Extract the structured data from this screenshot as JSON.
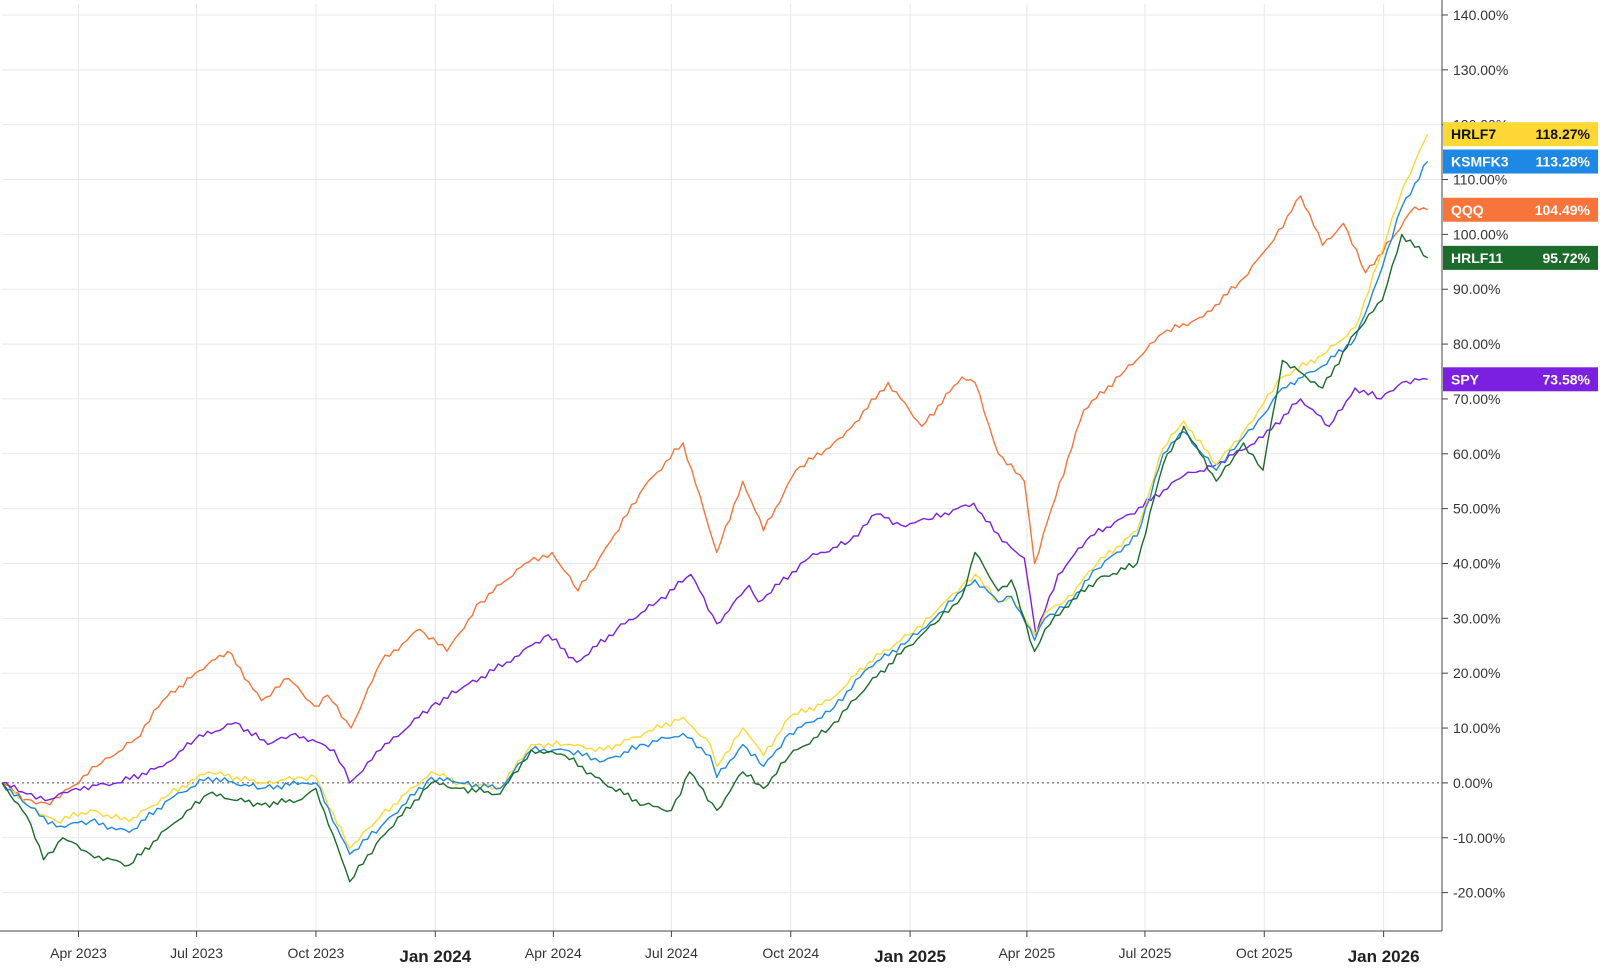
{
  "chart_data": {
    "type": "line",
    "title": "",
    "xlabel": "",
    "ylabel": "",
    "x_ticks": [
      {
        "label": "Apr 2023",
        "date": "2023-04-01",
        "major": false
      },
      {
        "label": "Jul 2023",
        "date": "2023-07-01",
        "major": false
      },
      {
        "label": "Oct 2023",
        "date": "2023-10-01",
        "major": false
      },
      {
        "label": "Jan 2024",
        "date": "2024-01-01",
        "major": true
      },
      {
        "label": "Apr 2024",
        "date": "2024-04-01",
        "major": false
      },
      {
        "label": "Jul 2024",
        "date": "2024-07-01",
        "major": false
      },
      {
        "label": "Oct 2024",
        "date": "2024-10-01",
        "major": false
      },
      {
        "label": "Jan 2025",
        "date": "2025-01-01",
        "major": true
      },
      {
        "label": "Apr 2025",
        "date": "2025-04-01",
        "major": false
      },
      {
        "label": "Jul 2025",
        "date": "2025-07-01",
        "major": false
      },
      {
        "label": "Oct 2025",
        "date": "2025-10-01",
        "major": false
      },
      {
        "label": "Jan 2026",
        "date": "2026-01-01",
        "major": true
      }
    ],
    "y_ticks": [
      -20,
      -10,
      0,
      10,
      20,
      30,
      40,
      50,
      60,
      70,
      80,
      90,
      100,
      110,
      120,
      130,
      140
    ],
    "y_tick_labels": [
      "-20.00%",
      "-10.00%",
      "0.00%",
      "10.00%",
      "20.00%",
      "30.00%",
      "40.00%",
      "50.00%",
      "60.00%",
      "70.00%",
      "80.00%",
      "90.00%",
      "100.00%",
      "110.00%",
      "120.00%",
      "130.00%",
      "140.00%"
    ],
    "xlim": [
      "2023-02-01",
      "2026-02-15"
    ],
    "ylim": [
      -27,
      142
    ],
    "grid": true,
    "zero_line": "dotted",
    "series": [
      {
        "name": "QQQ",
        "color": "#f7743b",
        "last_label": "104.49%",
        "last_value": 104.49,
        "points": [
          [
            "2023-02-01",
            0
          ],
          [
            "2023-02-20",
            -3
          ],
          [
            "2023-03-10",
            -4
          ],
          [
            "2023-03-25",
            -1
          ],
          [
            "2023-04-15",
            3
          ],
          [
            "2023-05-15",
            8
          ],
          [
            "2023-06-05",
            15
          ],
          [
            "2023-06-30",
            20
          ],
          [
            "2023-07-25",
            24
          ],
          [
            "2023-08-20",
            15
          ],
          [
            "2023-09-10",
            19
          ],
          [
            "2023-09-30",
            14
          ],
          [
            "2023-10-10",
            16
          ],
          [
            "2023-10-28",
            10
          ],
          [
            "2023-11-20",
            22
          ],
          [
            "2023-12-20",
            28
          ],
          [
            "2024-01-10",
            24
          ],
          [
            "2024-02-05",
            33
          ],
          [
            "2024-03-10",
            40
          ],
          [
            "2024-03-31",
            42
          ],
          [
            "2024-04-20",
            35
          ],
          [
            "2024-05-15",
            44
          ],
          [
            "2024-06-10",
            54
          ],
          [
            "2024-07-10",
            62
          ],
          [
            "2024-08-05",
            42
          ],
          [
            "2024-08-25",
            55
          ],
          [
            "2024-09-10",
            46
          ],
          [
            "2024-10-05",
            57
          ],
          [
            "2024-11-10",
            63
          ],
          [
            "2024-12-15",
            73
          ],
          [
            "2025-01-10",
            65
          ],
          [
            "2025-02-10",
            74
          ],
          [
            "2025-02-20",
            73
          ],
          [
            "2025-03-10",
            60
          ],
          [
            "2025-03-30",
            55
          ],
          [
            "2025-04-07",
            40
          ],
          [
            "2025-04-20",
            50
          ],
          [
            "2025-05-15",
            68
          ],
          [
            "2025-06-15",
            75
          ],
          [
            "2025-07-15",
            82
          ],
          [
            "2025-08-15",
            85
          ],
          [
            "2025-09-15",
            92
          ],
          [
            "2025-10-05",
            98
          ],
          [
            "2025-10-29",
            107
          ],
          [
            "2025-11-15",
            98
          ],
          [
            "2025-12-01",
            102
          ],
          [
            "2025-12-18",
            93
          ],
          [
            "2026-01-10",
            100
          ],
          [
            "2026-01-25",
            105
          ],
          [
            "2026-02-04",
            104.49
          ]
        ]
      },
      {
        "name": "SPY",
        "color": "#7b1fe0",
        "last_label": "73.58%",
        "last_value": 73.58,
        "points": [
          [
            "2023-02-01",
            0
          ],
          [
            "2023-02-20",
            -2
          ],
          [
            "2023-03-10",
            -3
          ],
          [
            "2023-03-30",
            -1
          ],
          [
            "2023-05-01",
            0
          ],
          [
            "2023-06-05",
            3
          ],
          [
            "2023-06-30",
            8
          ],
          [
            "2023-07-31",
            11
          ],
          [
            "2023-08-25",
            7
          ],
          [
            "2023-09-15",
            9
          ],
          [
            "2023-10-15",
            6
          ],
          [
            "2023-10-27",
            0
          ],
          [
            "2023-11-20",
            6
          ],
          [
            "2023-12-29",
            14
          ],
          [
            "2024-01-20",
            17
          ],
          [
            "2024-02-25",
            22
          ],
          [
            "2024-03-28",
            27
          ],
          [
            "2024-04-19",
            22
          ],
          [
            "2024-05-20",
            28
          ],
          [
            "2024-06-20",
            33
          ],
          [
            "2024-07-16",
            38
          ],
          [
            "2024-08-05",
            29
          ],
          [
            "2024-08-30",
            36
          ],
          [
            "2024-09-06",
            33
          ],
          [
            "2024-10-15",
            41
          ],
          [
            "2024-11-15",
            44
          ],
          [
            "2024-12-06",
            49
          ],
          [
            "2024-12-25",
            47
          ],
          [
            "2025-01-15",
            48
          ],
          [
            "2025-02-19",
            51
          ],
          [
            "2025-03-13",
            44
          ],
          [
            "2025-03-30",
            41
          ],
          [
            "2025-04-08",
            27
          ],
          [
            "2025-04-25",
            38
          ],
          [
            "2025-05-20",
            45
          ],
          [
            "2025-06-20",
            49
          ],
          [
            "2025-07-31",
            56
          ],
          [
            "2025-08-25",
            58
          ],
          [
            "2025-09-30",
            63
          ],
          [
            "2025-10-29",
            70
          ],
          [
            "2025-11-20",
            65
          ],
          [
            "2025-12-10",
            72
          ],
          [
            "2025-12-30",
            70
          ],
          [
            "2026-01-15",
            73
          ],
          [
            "2026-02-04",
            73.58
          ]
        ]
      },
      {
        "name": "HRLF7",
        "color": "#fdd835",
        "last_label": "118.27%",
        "last_value": 118.27,
        "points": [
          [
            "2023-02-01",
            0
          ],
          [
            "2023-02-20",
            -4
          ],
          [
            "2023-03-15",
            -7
          ],
          [
            "2023-04-10",
            -5
          ],
          [
            "2023-05-10",
            -7
          ],
          [
            "2023-06-10",
            -2
          ],
          [
            "2023-07-10",
            2
          ],
          [
            "2023-08-20",
            0
          ],
          [
            "2023-09-20",
            1
          ],
          [
            "2023-10-01",
            1
          ],
          [
            "2023-10-27",
            -12
          ],
          [
            "2023-11-20",
            -6
          ],
          [
            "2023-12-29",
            2
          ],
          [
            "2024-01-20",
            0
          ],
          [
            "2024-02-20",
            -1
          ],
          [
            "2024-03-15",
            7
          ],
          [
            "2024-04-10",
            7
          ],
          [
            "2024-05-10",
            6
          ],
          [
            "2024-06-10",
            9
          ],
          [
            "2024-07-10",
            12
          ],
          [
            "2024-07-31",
            7
          ],
          [
            "2024-08-05",
            3
          ],
          [
            "2024-08-25",
            10
          ],
          [
            "2024-09-10",
            5
          ],
          [
            "2024-09-30",
            12
          ],
          [
            "2024-10-31",
            15
          ],
          [
            "2024-11-30",
            22
          ],
          [
            "2024-12-31",
            27
          ],
          [
            "2025-01-20",
            31
          ],
          [
            "2025-02-10",
            36
          ],
          [
            "2025-02-20",
            38
          ],
          [
            "2025-03-10",
            33
          ],
          [
            "2025-03-20",
            34
          ],
          [
            "2025-04-07",
            27
          ],
          [
            "2025-04-15",
            31
          ],
          [
            "2025-04-30",
            33
          ],
          [
            "2025-05-25",
            40
          ],
          [
            "2025-06-25",
            46
          ],
          [
            "2025-07-15",
            61
          ],
          [
            "2025-07-31",
            66
          ],
          [
            "2025-08-25",
            58
          ],
          [
            "2025-09-15",
            64
          ],
          [
            "2025-09-30",
            69
          ],
          [
            "2025-10-15",
            74
          ],
          [
            "2025-11-15",
            78
          ],
          [
            "2025-12-10",
            83
          ],
          [
            "2025-12-31",
            97
          ],
          [
            "2026-01-15",
            108
          ],
          [
            "2026-02-04",
            118.27
          ]
        ]
      },
      {
        "name": "KSMFK3",
        "color": "#1e88e5",
        "last_label": "113.28%",
        "last_value": 113.28,
        "points": [
          [
            "2023-02-01",
            0
          ],
          [
            "2023-02-20",
            -4
          ],
          [
            "2023-03-15",
            -8
          ],
          [
            "2023-04-10",
            -7
          ],
          [
            "2023-05-10",
            -9
          ],
          [
            "2023-06-10",
            -3
          ],
          [
            "2023-07-10",
            1
          ],
          [
            "2023-08-20",
            -1
          ],
          [
            "2023-09-20",
            0
          ],
          [
            "2023-10-01",
            0
          ],
          [
            "2023-10-27",
            -13
          ],
          [
            "2023-11-20",
            -8
          ],
          [
            "2023-12-29",
            1
          ],
          [
            "2024-01-20",
            0
          ],
          [
            "2024-02-20",
            -1
          ],
          [
            "2024-03-15",
            6
          ],
          [
            "2024-04-10",
            6
          ],
          [
            "2024-05-10",
            4
          ],
          [
            "2024-06-10",
            7
          ],
          [
            "2024-07-10",
            9
          ],
          [
            "2024-07-31",
            5
          ],
          [
            "2024-08-05",
            1
          ],
          [
            "2024-08-25",
            7
          ],
          [
            "2024-09-10",
            3
          ],
          [
            "2024-09-30",
            9
          ],
          [
            "2024-10-31",
            13
          ],
          [
            "2024-11-30",
            21
          ],
          [
            "2024-12-31",
            26
          ],
          [
            "2025-01-20",
            30
          ],
          [
            "2025-02-10",
            35
          ],
          [
            "2025-02-20",
            37
          ],
          [
            "2025-03-10",
            33
          ],
          [
            "2025-03-20",
            34
          ],
          [
            "2025-04-07",
            26
          ],
          [
            "2025-04-15",
            30
          ],
          [
            "2025-04-30",
            32
          ],
          [
            "2025-05-25",
            39
          ],
          [
            "2025-06-25",
            45
          ],
          [
            "2025-07-15",
            60
          ],
          [
            "2025-07-31",
            64
          ],
          [
            "2025-08-25",
            57
          ],
          [
            "2025-09-15",
            63
          ],
          [
            "2025-09-30",
            67
          ],
          [
            "2025-10-15",
            72
          ],
          [
            "2025-11-15",
            76
          ],
          [
            "2025-12-10",
            81
          ],
          [
            "2025-12-31",
            94
          ],
          [
            "2026-01-15",
            105
          ],
          [
            "2026-02-04",
            113.28
          ]
        ]
      },
      {
        "name": "HRLF11",
        "color": "#1b6b2a",
        "last_label": "95.72%",
        "last_value": 95.72,
        "points": [
          [
            "2023-02-01",
            0
          ],
          [
            "2023-02-20",
            -6
          ],
          [
            "2023-03-05",
            -14
          ],
          [
            "2023-03-20",
            -10
          ],
          [
            "2023-04-10",
            -13
          ],
          [
            "2023-05-10",
            -15
          ],
          [
            "2023-06-10",
            -8
          ],
          [
            "2023-07-10",
            -2
          ],
          [
            "2023-08-20",
            -4
          ],
          [
            "2023-09-20",
            -3
          ],
          [
            "2023-10-01",
            -1
          ],
          [
            "2023-10-27",
            -18
          ],
          [
            "2023-11-20",
            -10
          ],
          [
            "2023-12-29",
            0
          ],
          [
            "2024-01-20",
            -1
          ],
          [
            "2024-02-20",
            -2
          ],
          [
            "2024-03-15",
            6
          ],
          [
            "2024-04-10",
            5
          ],
          [
            "2024-05-10",
            0
          ],
          [
            "2024-06-10",
            -4
          ],
          [
            "2024-07-01",
            -5
          ],
          [
            "2024-07-15",
            2
          ],
          [
            "2024-08-05",
            -5
          ],
          [
            "2024-08-25",
            2
          ],
          [
            "2024-09-10",
            -1
          ],
          [
            "2024-09-30",
            5
          ],
          [
            "2024-10-31",
            10
          ],
          [
            "2024-11-30",
            18
          ],
          [
            "2024-12-31",
            25
          ],
          [
            "2025-01-20",
            29
          ],
          [
            "2025-02-10",
            34
          ],
          [
            "2025-02-20",
            42
          ],
          [
            "2025-03-10",
            35
          ],
          [
            "2025-03-20",
            37
          ],
          [
            "2025-04-07",
            24
          ],
          [
            "2025-04-15",
            28
          ],
          [
            "2025-04-30",
            32
          ],
          [
            "2025-05-25",
            37
          ],
          [
            "2025-06-25",
            40
          ],
          [
            "2025-07-15",
            58
          ],
          [
            "2025-07-31",
            65
          ],
          [
            "2025-08-25",
            55
          ],
          [
            "2025-09-15",
            62
          ],
          [
            "2025-09-30",
            57
          ],
          [
            "2025-10-15",
            77
          ],
          [
            "2025-11-15",
            72
          ],
          [
            "2025-12-10",
            82
          ],
          [
            "2025-12-31",
            88
          ],
          [
            "2026-01-15",
            100
          ],
          [
            "2026-02-04",
            95.72
          ]
        ]
      }
    ]
  }
}
